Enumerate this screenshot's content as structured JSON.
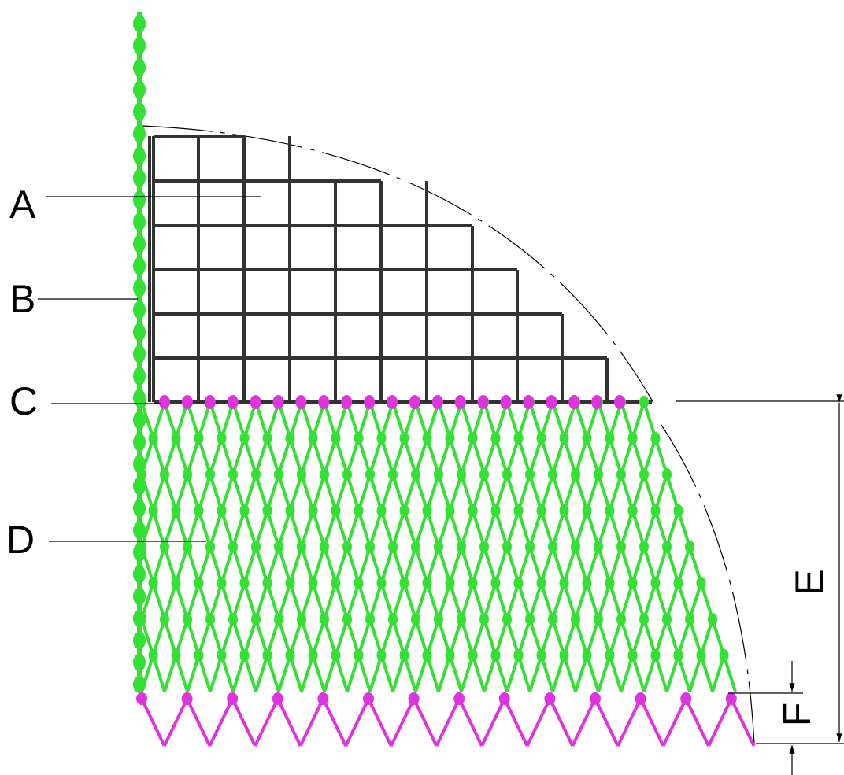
{
  "labels": [
    "A",
    "B",
    "C",
    "D",
    "E",
    "F"
  ]
}
